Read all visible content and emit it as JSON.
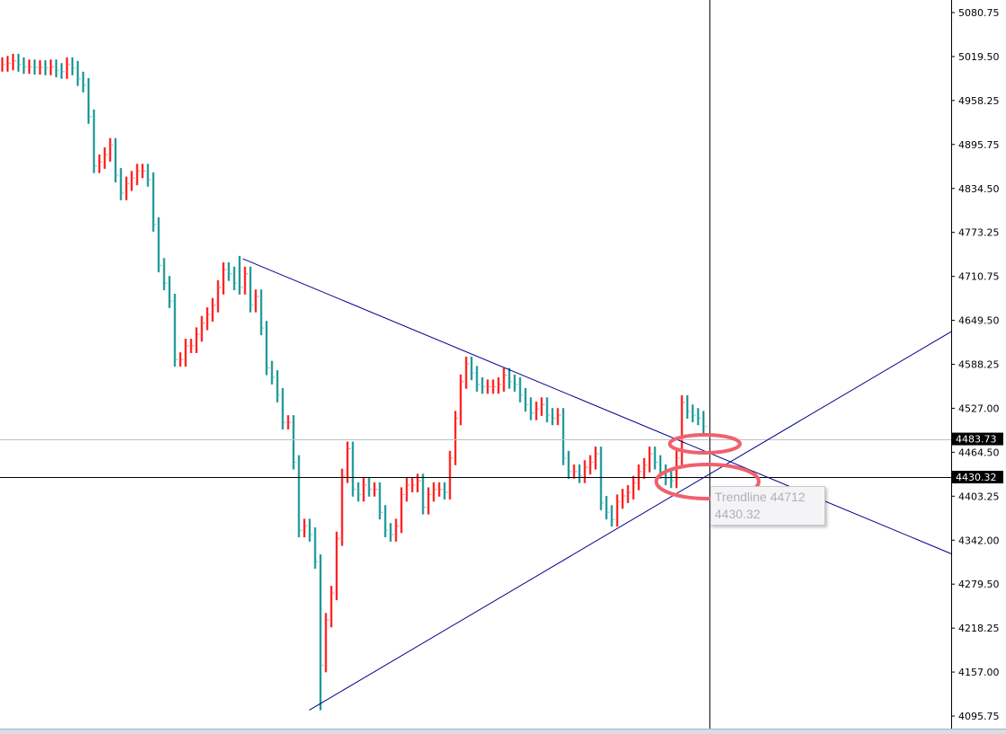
{
  "chart_data": {
    "type": "bar",
    "subtype": "ohlc",
    "ylim": [
      4095.75,
      5080.75
    ],
    "yticks": [
      "5080.75",
      "5019.50",
      "4958.25",
      "4895.75",
      "4834.50",
      "4773.25",
      "4710.75",
      "4649.50",
      "4588.25",
      "4527.00",
      "4464.50",
      "4403.25",
      "4342.00",
      "4279.50",
      "4218.25",
      "4157.00",
      "4095.75"
    ],
    "grid": false,
    "colors": {
      "up": "#ff0000",
      "down": "#008b8b",
      "trendline": "#00008b",
      "annotation": "#f0606e"
    },
    "close": [
      5008,
      5010,
      5013,
      5008,
      5005,
      5005,
      5004,
      5004,
      5003,
      5005,
      5000,
      4998,
      5008,
      5003,
      4988,
      4979,
      4935,
      4866,
      4872,
      4882,
      4895,
      4853,
      4828,
      4841,
      4849,
      4859,
      4859,
      4847,
      4784,
      4727,
      4702,
      4677,
      4595,
      4595,
      4614,
      4614,
      4630,
      4646,
      4658,
      4671,
      4696,
      4721,
      4715,
      4702,
      4696,
      4715,
      4671,
      4683,
      4639,
      4583,
      4570,
      4545,
      4507,
      4507,
      4451,
      4356,
      4362,
      4350,
      4312,
      4167,
      4230,
      4268,
      4344,
      4432,
      4470,
      4413,
      4406,
      4419,
      4413,
      4413,
      4381,
      4356,
      4350,
      4362,
      4406,
      4419,
      4419,
      4425,
      4388,
      4406,
      4413,
      4413,
      4409,
      4457,
      4513,
      4564,
      4589,
      4576,
      4560,
      4557,
      4557,
      4557,
      4560,
      4573,
      4564,
      4560,
      4545,
      4532,
      4520,
      4526,
      4532,
      4517,
      4513,
      4517,
      4457,
      4438,
      4438,
      4432,
      4444,
      4451,
      4463,
      4394,
      4381,
      4371,
      4396,
      4404,
      4409,
      4422,
      4438,
      4447,
      4463,
      4451,
      4438,
      4429,
      4425,
      4457,
      4535,
      4522,
      4517,
      4513,
      4501
    ],
    "extremes": {
      "low": 4104,
      "high": 4740
    },
    "trendlines": [
      {
        "name": "descending",
        "from": {
          "bar": 44.7,
          "price": 4736
        },
        "to": {
          "bar": 176,
          "price": 4323
        }
      },
      {
        "name": "ascending",
        "from": {
          "bar": 57,
          "price": 4104
        },
        "to": {
          "bar": 176,
          "price": 4634
        }
      }
    ],
    "hlines": [
      {
        "price": 4483.73,
        "label": "4483.73",
        "color": "#c0c0c0"
      },
      {
        "price": 4430.32,
        "label": "4430.32",
        "color": "#000000"
      }
    ],
    "crosshair": {
      "bar": 131.2,
      "price": 4430.32
    }
  },
  "tooltip": {
    "line1": "Trendline 44712",
    "line2": "4430.32"
  }
}
